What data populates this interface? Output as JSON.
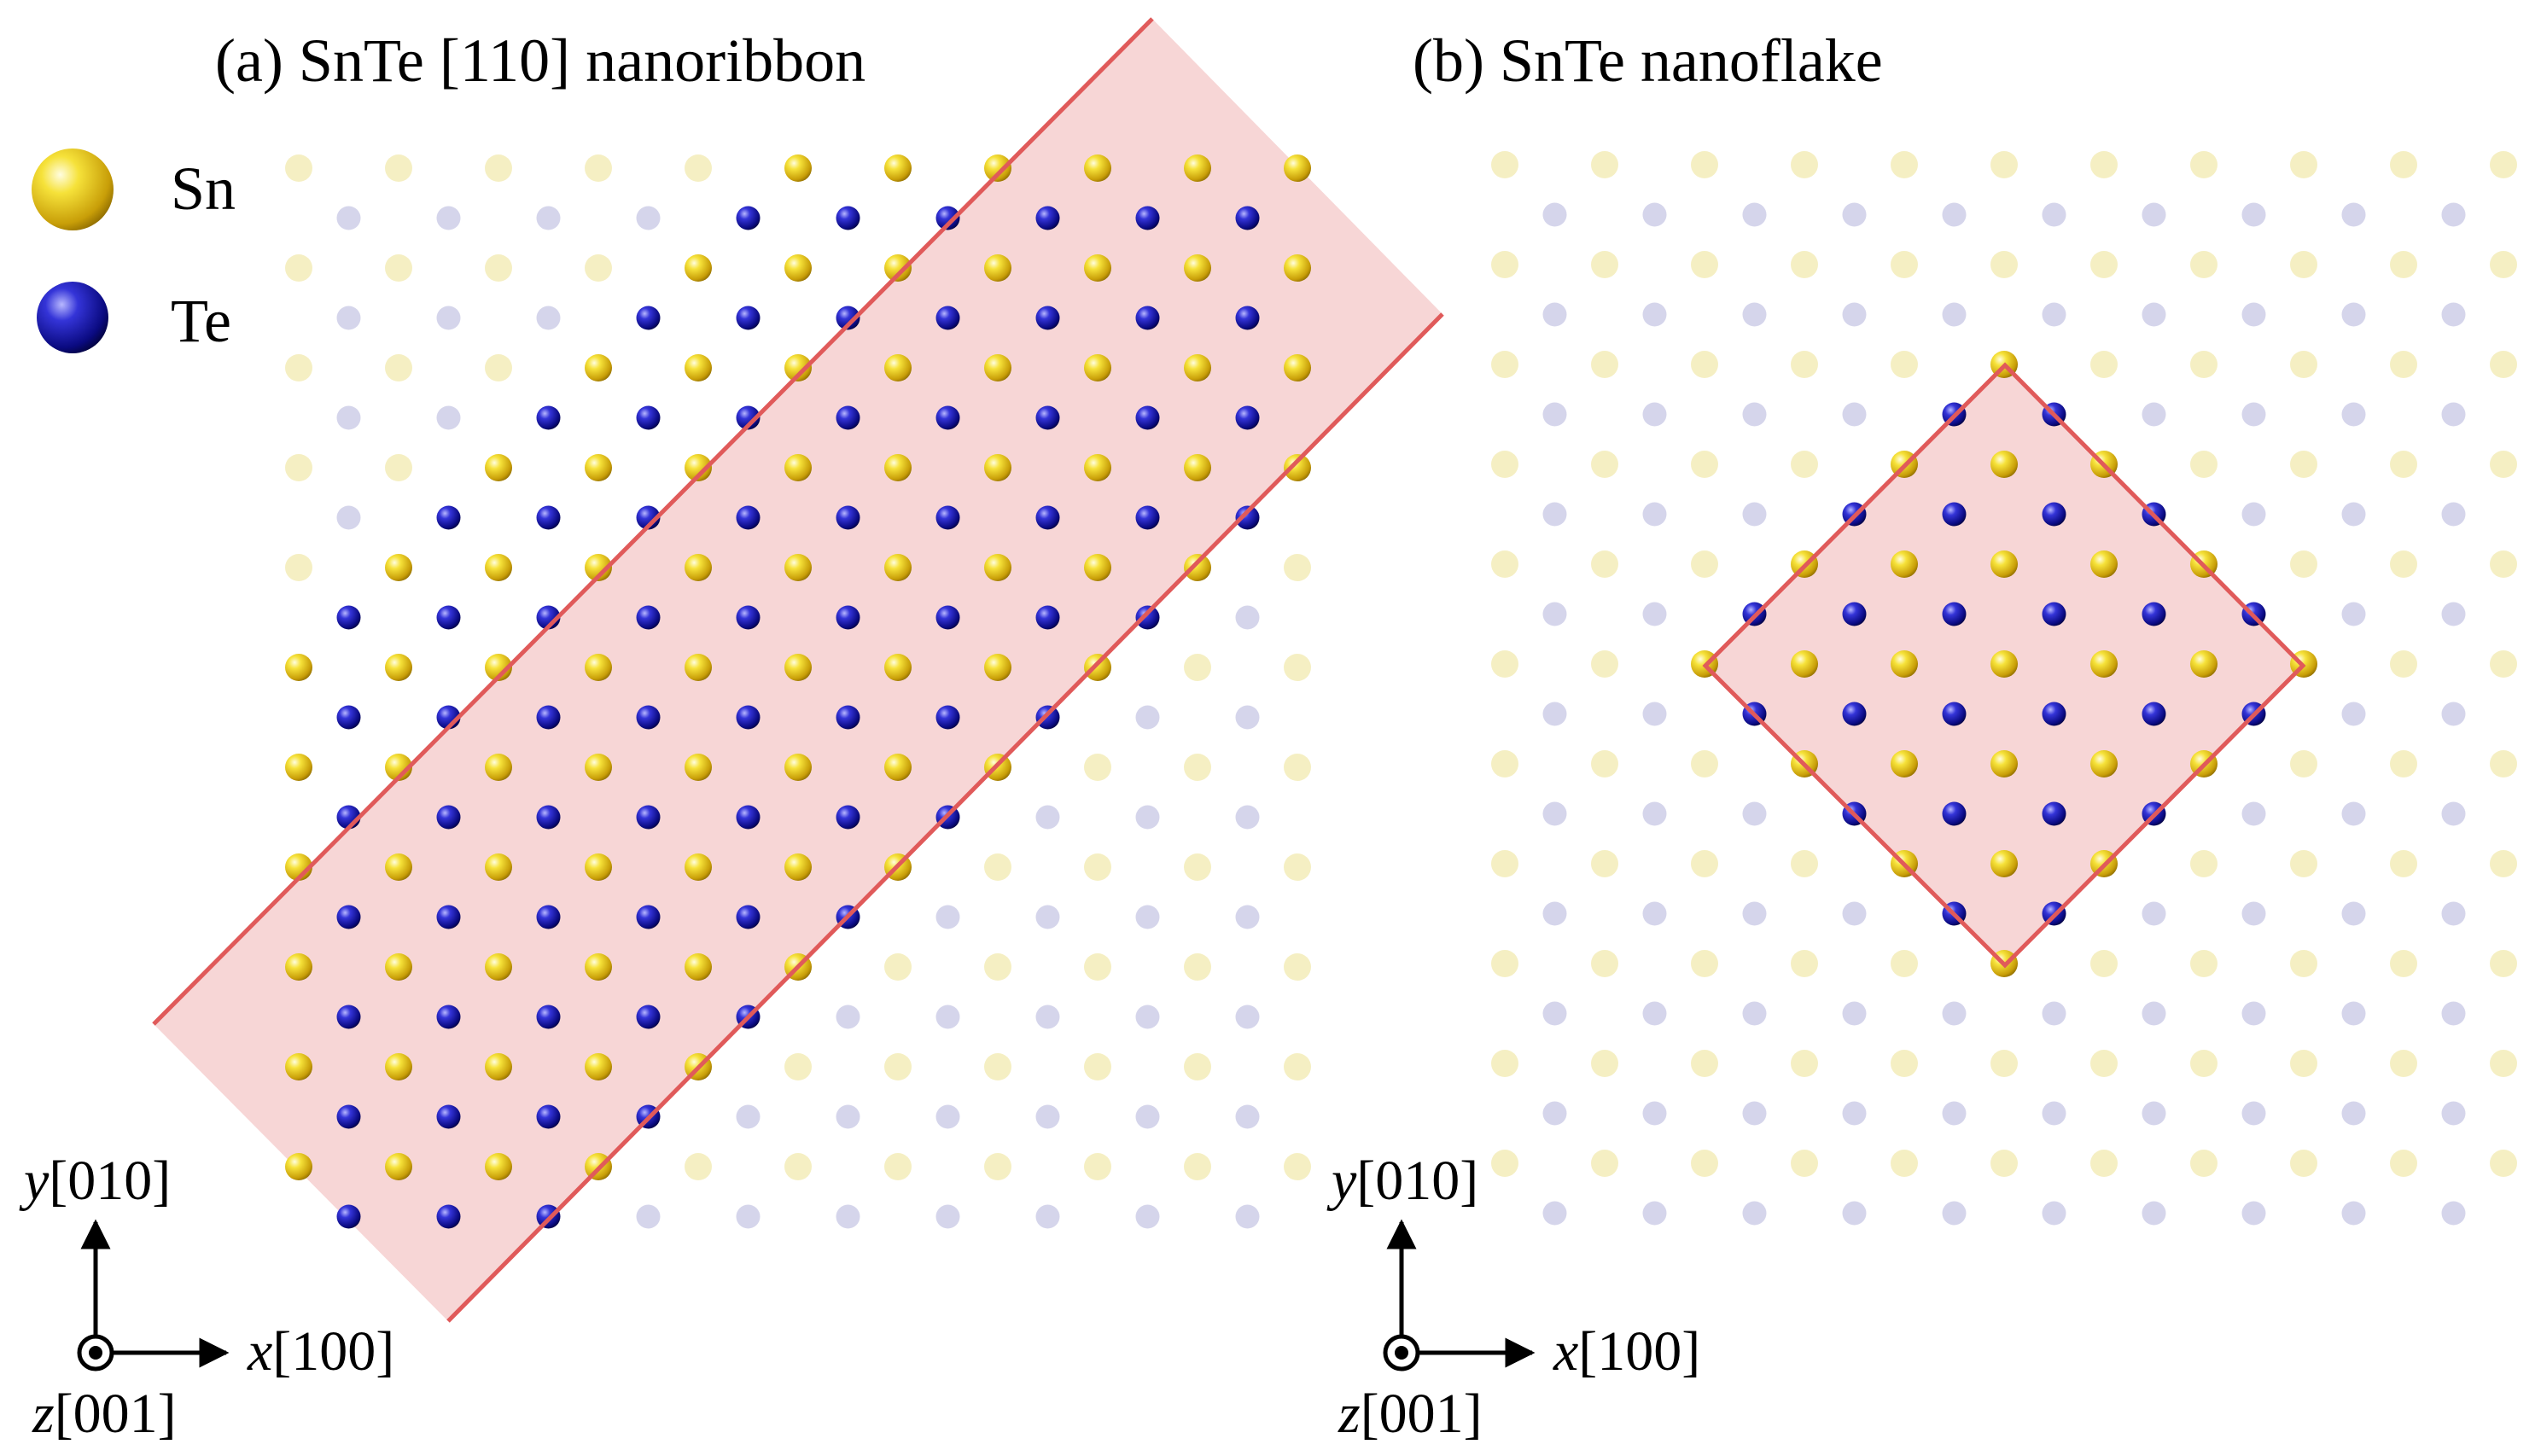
{
  "colors": {
    "background": "#ffffff",
    "sn": "#e7c21a",
    "te": "#14148c",
    "outline": "#e05a5a",
    "region_fill": "#f7d6d6"
  },
  "legend": [
    {
      "label": "Sn",
      "element": "Sn"
    },
    {
      "label": "Te",
      "element": "Te"
    }
  ],
  "panels": [
    {
      "id": "a",
      "title": "(a) SnTe [110] nanoribbon",
      "structure": "nanoribbon",
      "ribbon_direction": "[110]",
      "axes": {
        "y": {
          "var": "y",
          "dir": "[010]"
        },
        "x": {
          "var": "x",
          "dir": "[100]"
        },
        "z": {
          "var": "z",
          "dir": "[001]"
        }
      }
    },
    {
      "id": "b",
      "title": "(b) SnTe nanoflake",
      "structure": "nanoflake",
      "axes": {
        "y": {
          "var": "y",
          "dir": "[010]"
        },
        "x": {
          "var": "x",
          "dir": "[100]"
        },
        "z": {
          "var": "z",
          "dir": "[001]"
        }
      }
    }
  ]
}
